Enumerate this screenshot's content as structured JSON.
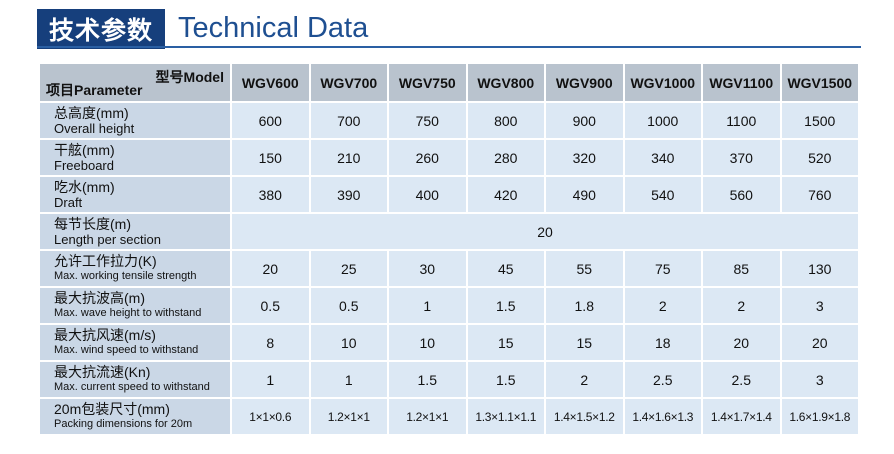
{
  "header": {
    "title_cn": "技术参数",
    "title_en": "Technical Data"
  },
  "table": {
    "corner_model": "型号Model",
    "corner_param": "项目Parameter",
    "columns": [
      "WGV600",
      "WGV700",
      "WGV750",
      "WGV800",
      "WGV900",
      "WGV1000",
      "WGV1100",
      "WGV1500"
    ],
    "rows": [
      {
        "label_cn": "总高度(mm)",
        "label_en": "Overall height",
        "values": [
          600,
          700,
          750,
          800,
          900,
          1000,
          1100,
          1500
        ]
      },
      {
        "label_cn": "干舷(mm)",
        "label_en": "Freeboard",
        "values": [
          150,
          210,
          260,
          280,
          320,
          340,
          370,
          520
        ]
      },
      {
        "label_cn": "吃水(mm)",
        "label_en": "Draft",
        "values": [
          380,
          390,
          400,
          420,
          490,
          540,
          560,
          760
        ]
      },
      {
        "label_cn": "每节长度(m)",
        "label_en": "Length per section",
        "values": [
          20
        ]
      },
      {
        "label_cn": "允许工作拉力(K)",
        "label_en": "Max. working tensile strength",
        "values": [
          20,
          25,
          30,
          45,
          55,
          75,
          85,
          130
        ]
      },
      {
        "label_cn": "最大抗波高(m)",
        "label_en": "Max. wave height to withstand",
        "values": [
          0.5,
          0.5,
          1,
          1.5,
          1.8,
          2,
          2,
          3
        ]
      },
      {
        "label_cn": "最大抗风速(m/s)",
        "label_en": "Max. wind speed to withstand",
        "values": [
          8,
          10,
          10,
          15,
          15,
          18,
          20,
          20
        ]
      },
      {
        "label_cn": "最大抗流速(Kn)",
        "label_en": "Max. current speed to withstand",
        "values": [
          1,
          1,
          1.5,
          1.5,
          2,
          2.5,
          2.5,
          3
        ]
      },
      {
        "label_cn": "20m包装尺寸(mm)",
        "label_en": "Packing dimensions for 20m",
        "values": [
          "1×1×0.6",
          "1.2×1×1",
          "1.2×1×1",
          "1.3×1.1×1.1",
          "1.4×1.5×1.2",
          "1.4×1.6×1.3",
          "1.4×1.7×1.4",
          "1.6×1.9×1.8"
        ]
      }
    ]
  }
}
